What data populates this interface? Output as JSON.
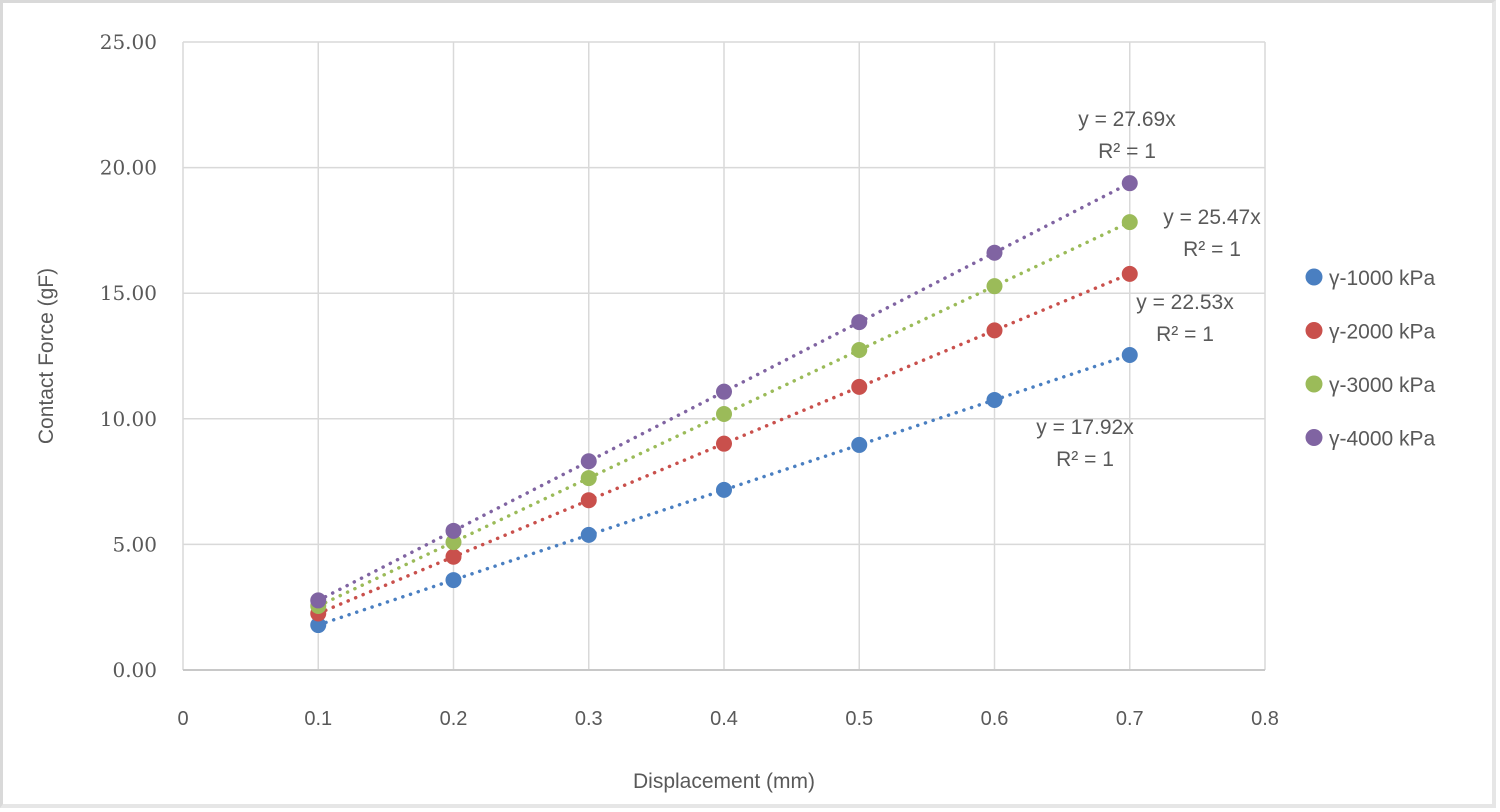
{
  "chart_data": {
    "type": "scatter",
    "title": "",
    "xlabel": "Displacement (mm)",
    "ylabel": "Contact Force (gF)",
    "xlim": [
      0,
      0.8
    ],
    "ylim": [
      0,
      25
    ],
    "x_ticks": [
      "0",
      "0.1",
      "0.2",
      "0.3",
      "0.4",
      "0.5",
      "0.6",
      "0.7",
      "0.8"
    ],
    "x_tick_values": [
      0,
      0.1,
      0.2,
      0.3,
      0.4,
      0.5,
      0.6,
      0.7,
      0.8
    ],
    "y_ticks": [
      "0.00",
      "5.00",
      "10.00",
      "15.00",
      "20.00",
      "25.00"
    ],
    "y_tick_values": [
      0,
      5,
      10,
      15,
      20,
      25
    ],
    "grid": true,
    "legend_position": "right",
    "x": [
      0.1,
      0.2,
      0.3,
      0.4,
      0.5,
      0.6,
      0.7
    ],
    "series": [
      {
        "name": "γ-1000 kPa",
        "color": "#4a7fc1",
        "slope": 17.92,
        "values": [
          1.79,
          3.58,
          5.38,
          7.17,
          8.96,
          10.75,
          12.54
        ],
        "trendline": "y = 17.92x",
        "r2": "R² = 1"
      },
      {
        "name": "γ-2000 kPa",
        "color": "#c9504c",
        "slope": 22.53,
        "values": [
          2.25,
          4.51,
          6.76,
          9.01,
          11.27,
          13.52,
          15.77
        ],
        "trendline": "y = 22.53x",
        "r2": "R² = 1"
      },
      {
        "name": "γ-3000 kPa",
        "color": "#9bbb59",
        "slope": 25.47,
        "values": [
          2.55,
          5.09,
          7.64,
          10.19,
          12.74,
          15.28,
          17.83
        ],
        "trendline": "y = 25.47x",
        "r2": "R² = 1"
      },
      {
        "name": "γ-4000 kPa",
        "color": "#8064a2",
        "slope": 27.69,
        "values": [
          2.77,
          5.54,
          8.31,
          11.08,
          13.85,
          16.61,
          19.38
        ],
        "trendline": "y = 27.69x",
        "r2": "R² = 1"
      }
    ]
  }
}
